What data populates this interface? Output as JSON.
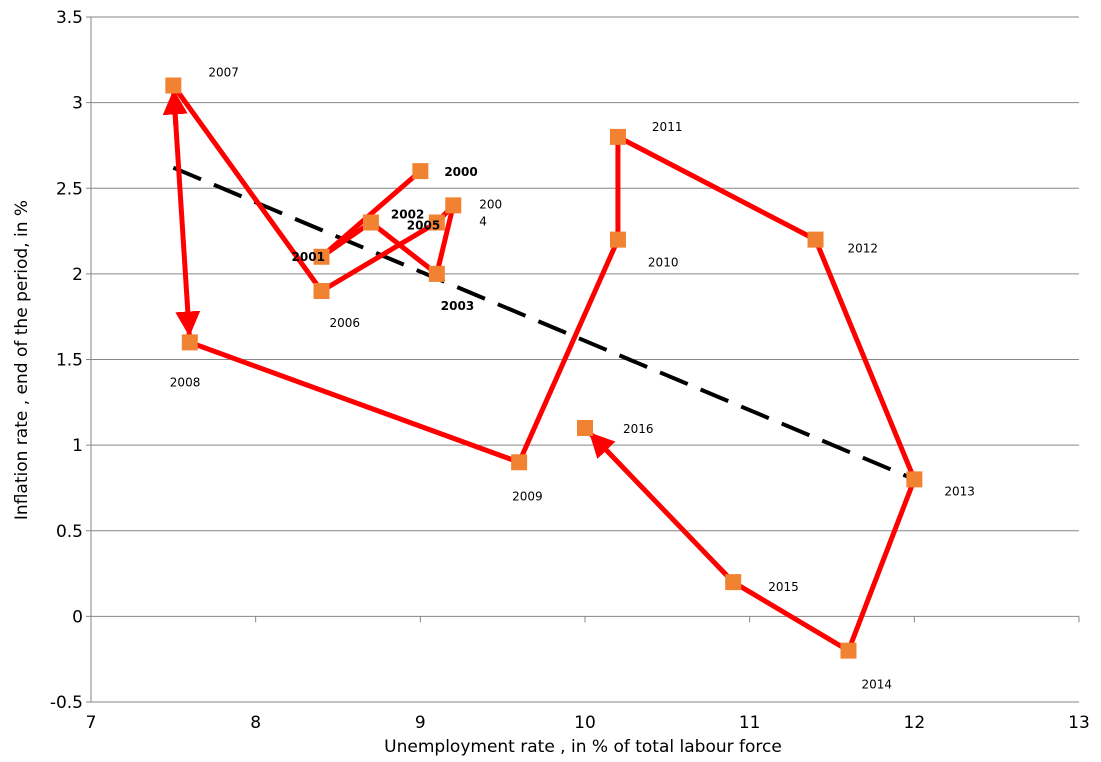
{
  "chart_data": {
    "type": "scatter",
    "xlabel": "Unemployment  rate , in  % of total labour force",
    "ylabel": "Inflation rate , end of the period, in %",
    "xlim": [
      7,
      13
    ],
    "ylim": [
      -0.5,
      3.5
    ],
    "xticks": [
      7,
      8,
      9,
      10,
      11,
      12,
      13
    ],
    "yticks": [
      -0.5,
      0,
      0.5,
      1,
      1.5,
      2,
      2.5,
      3,
      3.5
    ],
    "grid": "horizontal",
    "legend": "none",
    "colors": {
      "path": "#ff0000",
      "marker": "#f08232",
      "trend": "#000000"
    },
    "points": [
      {
        "label": "2000",
        "x": 9.0,
        "y": 2.6
      },
      {
        "label": "2001",
        "x": 8.4,
        "y": 2.1
      },
      {
        "label": "2002",
        "x": 8.7,
        "y": 2.3
      },
      {
        "label": "2003",
        "x": 9.1,
        "y": 2.0
      },
      {
        "label": "200\n4",
        "x": 9.2,
        "y": 2.4
      },
      {
        "label": "2005",
        "x": 9.1,
        "y": 2.3
      },
      {
        "label": "2006",
        "x": 8.4,
        "y": 1.9
      },
      {
        "label": "2007",
        "x": 7.5,
        "y": 3.1
      },
      {
        "label": "2008",
        "x": 7.6,
        "y": 1.6
      },
      {
        "label": "2009",
        "x": 9.6,
        "y": 0.9
      },
      {
        "label": "2010",
        "x": 10.2,
        "y": 2.2
      },
      {
        "label": "2011",
        "x": 10.2,
        "y": 2.8
      },
      {
        "label": "2012",
        "x": 11.4,
        "y": 2.2
      },
      {
        "label": "2013",
        "x": 12.0,
        "y": 0.8
      },
      {
        "label": "2014",
        "x": 11.6,
        "y": -0.2
      },
      {
        "label": "2015",
        "x": 10.9,
        "y": 0.2
      },
      {
        "label": "2016",
        "x": 10.0,
        "y": 1.1
      }
    ],
    "trendline": {
      "style": "dashed",
      "from": {
        "x": 7.5,
        "y": 2.62
      },
      "to": {
        "x": 12.0,
        "y": 0.8
      }
    }
  }
}
